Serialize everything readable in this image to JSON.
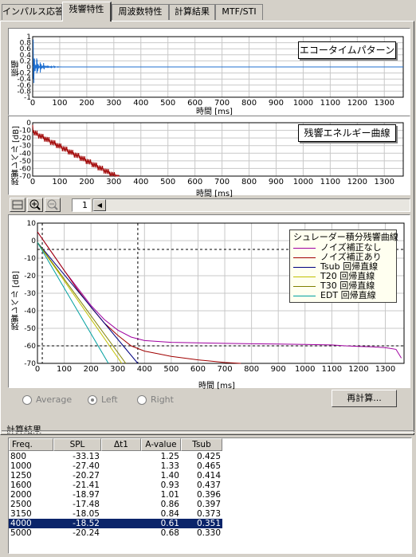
{
  "tabs": [
    "インパルス応答",
    "残響特性",
    "周波数特性",
    "計算結果",
    "MTF/STI"
  ],
  "active_tab": 1,
  "echo_plot": {
    "ylabel": "振幅",
    "xlabel": "時間 [ms]",
    "button": "エコータイムパターン",
    "yticks": [
      "1",
      "0.8",
      "0.6",
      "0.4",
      "0.2",
      "0",
      "-0.2",
      "-0.4",
      "-0.6",
      "-0.8",
      "-1"
    ],
    "xticks": [
      "0",
      "100",
      "200",
      "300",
      "400",
      "500",
      "600",
      "700",
      "800",
      "900",
      "1000",
      "1100",
      "1200",
      "1300"
    ],
    "color": "#1f6fd0"
  },
  "energy_plot": {
    "ylabel": "残響レベル [dB]",
    "xlabel": "時間 [ms]",
    "button": "残響エネルギー曲線",
    "yticks": [
      "0",
      "-10",
      "-20",
      "-30",
      "-40",
      "-50",
      "-60",
      "-70"
    ],
    "xticks": [
      "0",
      "100",
      "200",
      "300",
      "400",
      "500",
      "600",
      "700",
      "800",
      "900",
      "1000",
      "1100",
      "1200",
      "1300"
    ],
    "color": "#a00000"
  },
  "toolbar": {
    "page": "1",
    "icons": [
      "layout-icon",
      "zoom-in-icon",
      "zoom-out-icon"
    ]
  },
  "decay_plot": {
    "ylabel": "残響レベル [dB]",
    "xlabel": "時間 [ms]",
    "yticks": [
      "10",
      "0",
      "-10",
      "-20",
      "-30",
      "-40",
      "-50",
      "-60",
      "-70"
    ],
    "xticks": [
      "0",
      "100",
      "200",
      "300",
      "400",
      "500",
      "600",
      "700",
      "800",
      "900",
      "1000",
      "1100",
      "1200",
      "1300"
    ],
    "legend_title": "シュレーダー積分残響曲線",
    "legend": [
      {
        "label": "ノイズ補正なし",
        "color": "#a000a0"
      },
      {
        "label": "ノイズ補正あり",
        "color": "#a00000"
      },
      {
        "label": "Tsub 回帰直線",
        "color": "#000080"
      },
      {
        "label": "T20 回帰直線",
        "color": "#c0c000"
      },
      {
        "label": "T30 回帰直線",
        "color": "#808000"
      },
      {
        "label": "EDT 回帰直線",
        "color": "#00a0a0"
      }
    ]
  },
  "chart_data": {
    "type": "line",
    "xlabel": "時間 [ms]",
    "ylabel": "残響レベル [dB]",
    "xlim": [
      0,
      1370
    ],
    "ylim": [
      -70,
      10
    ],
    "series": [
      {
        "name": "ノイズ補正なし",
        "x": [
          0,
          50,
          100,
          150,
          200,
          250,
          300,
          350,
          400,
          450,
          500,
          600,
          700,
          800,
          900,
          1000,
          1100,
          1150,
          1200,
          1250,
          1300,
          1340,
          1360
        ],
        "y": [
          5,
          -6,
          -17,
          -27,
          -37,
          -45,
          -51,
          -55,
          -57,
          -57.5,
          -58,
          -58.3,
          -58.6,
          -58.8,
          -59,
          -59.2,
          -59.5,
          -60,
          -60.3,
          -60.6,
          -61,
          -62,
          -67
        ]
      },
      {
        "name": "ノイズ補正あり",
        "x": [
          0,
          50,
          100,
          150,
          200,
          250,
          300,
          350,
          400,
          450,
          500,
          600,
          700,
          760
        ],
        "y": [
          5,
          -6,
          -17,
          -28,
          -38,
          -47,
          -54,
          -60,
          -63,
          -64.5,
          -66,
          -68,
          -69.5,
          -70
        ]
      },
      {
        "name": "Tsub 回帰直線",
        "x": [
          0,
          375
        ],
        "y": [
          -1,
          -70
        ]
      },
      {
        "name": "T20 回帰直線",
        "x": [
          0,
          315
        ],
        "y": [
          -1,
          -70
        ]
      },
      {
        "name": "T30 回帰直線",
        "x": [
          0,
          330
        ],
        "y": [
          -1,
          -70
        ]
      },
      {
        "name": "EDT 回帰直線",
        "x": [
          0,
          265
        ],
        "y": [
          -1,
          -70
        ]
      }
    ]
  },
  "radios": [
    {
      "label": "Average",
      "checked": false
    },
    {
      "label": "Left",
      "checked": true
    },
    {
      "label": "Right",
      "checked": false
    }
  ],
  "recalc_button": "再計算...",
  "results": {
    "title": "計算結果",
    "columns": [
      "Freq.",
      "SPL",
      "Δt1",
      "A-value",
      "Tsub"
    ],
    "rows": [
      [
        "800",
        "-33.13",
        "",
        "1.25",
        "0.425"
      ],
      [
        "1000",
        "-27.40",
        "",
        "1.33",
        "0.465"
      ],
      [
        "1250",
        "-20.27",
        "",
        "1.40",
        "0.414"
      ],
      [
        "1600",
        "-21.41",
        "",
        "0.93",
        "0.437"
      ],
      [
        "2000",
        "-18.97",
        "",
        "1.01",
        "0.396"
      ],
      [
        "2500",
        "-17.48",
        "",
        "0.86",
        "0.397"
      ],
      [
        "3150",
        "-18.05",
        "",
        "0.84",
        "0.373"
      ],
      [
        "4000",
        "-18.52",
        "",
        "0.61",
        "0.351"
      ],
      [
        "5000",
        "-20.24",
        "",
        "0.68",
        "0.330"
      ]
    ],
    "selected_row": 7
  }
}
